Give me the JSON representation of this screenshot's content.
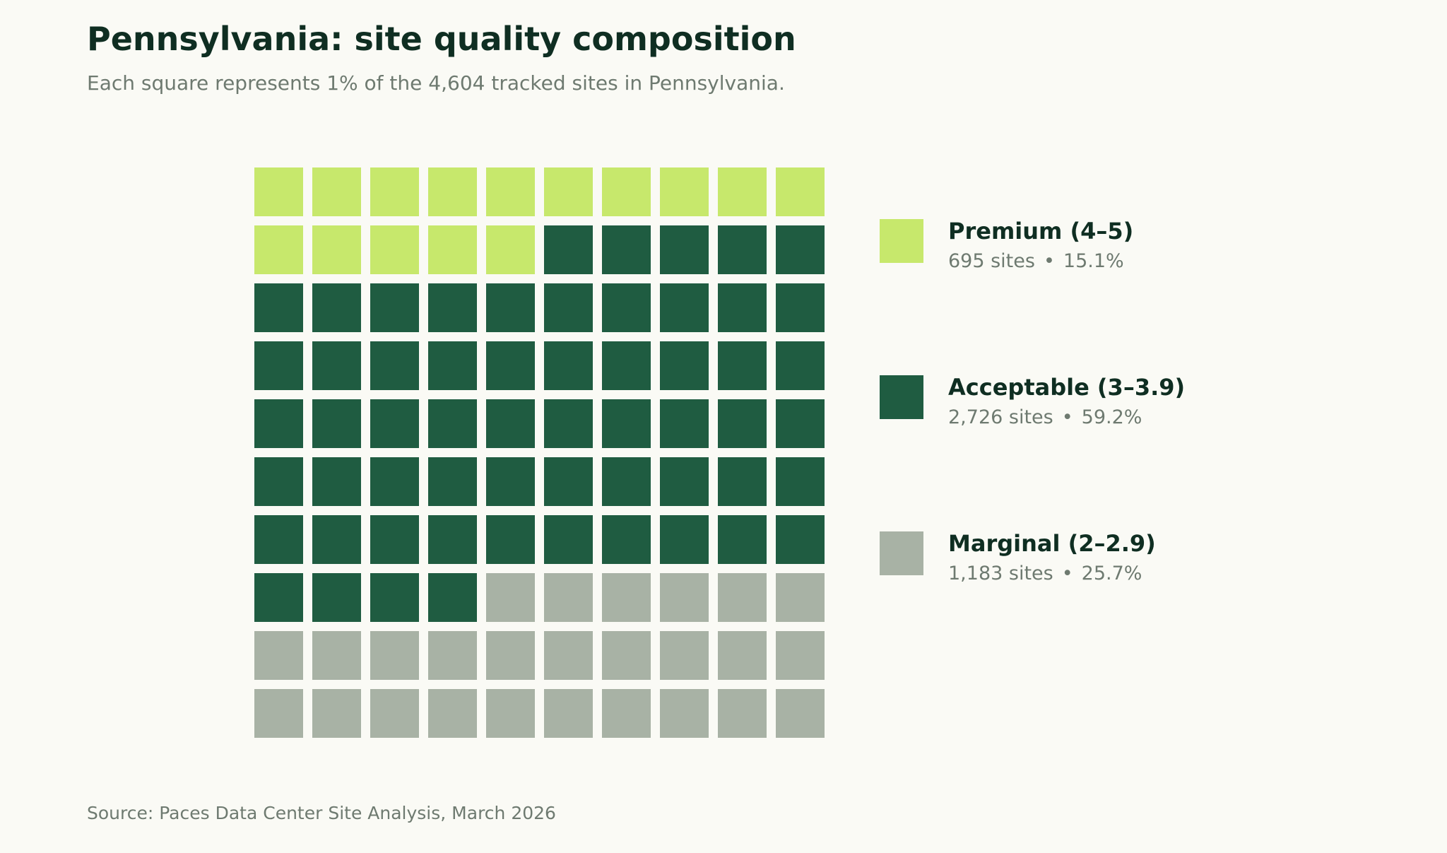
{
  "chart_data": {
    "type": "waffle",
    "title": "Pennsylvania: site quality composition",
    "subtitle": "Each square represents 1% of the 4,604 tracked sites in Pennsylvania.",
    "source": "Source: Paces Data Center Site Analysis, March 2026",
    "grid": {
      "rows": 10,
      "cols": 10
    },
    "categories": [
      {
        "label": "Premium (4–5)",
        "sites": "695 sites",
        "percent": "15.1%",
        "squares": 15,
        "color": "#c7e86c"
      },
      {
        "label": "Acceptable (3–3.9)",
        "sites": "2,726 sites",
        "percent": "59.2%",
        "squares": 59,
        "color": "#1f5c41"
      },
      {
        "label": "Marginal (2–2.9)",
        "sites": "1,183 sites",
        "percent": "25.7%",
        "squares": 26,
        "color": "#a8b2a5"
      }
    ],
    "separator": "•"
  }
}
